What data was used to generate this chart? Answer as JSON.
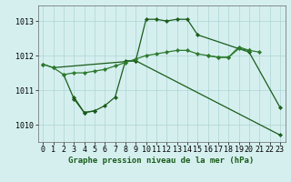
{
  "xlabel": "Graphe pression niveau de la mer (hPa)",
  "hours": [
    0,
    1,
    2,
    3,
    4,
    5,
    6,
    7,
    8,
    9,
    10,
    11,
    12,
    13,
    14,
    15,
    16,
    17,
    18,
    19,
    20,
    21,
    22,
    23
  ],
  "line1": [
    1011.75,
    1011.65,
    null,
    null,
    null,
    null,
    null,
    null,
    null,
    1011.85,
    1013.05,
    1013.05,
    1013.0,
    1013.05,
    1013.05,
    1012.6,
    null,
    null,
    null,
    null,
    1012.1,
    null,
    null,
    1010.5
  ],
  "line2": [
    null,
    null,
    1011.45,
    1010.75,
    1010.35,
    1010.4,
    1010.55,
    1010.8,
    1011.85,
    1011.85,
    null,
    null,
    null,
    null,
    null,
    null,
    null,
    null,
    null,
    null,
    null,
    null,
    null,
    1009.7
  ],
  "line3": [
    null,
    null,
    null,
    1010.8,
    1010.35,
    1010.4,
    null,
    null,
    null,
    null,
    null,
    null,
    null,
    null,
    null,
    null,
    null,
    null,
    null,
    null,
    null,
    null,
    null,
    null
  ],
  "line4": [
    1011.75,
    1011.65,
    1011.45,
    1011.5,
    1011.5,
    1011.55,
    1011.6,
    1011.7,
    1011.8,
    1011.9,
    1012.0,
    1012.05,
    1012.1,
    1012.15,
    1012.15,
    1012.05,
    1012.0,
    1011.95,
    1011.95,
    1012.2,
    1012.15,
    1012.1,
    null,
    null
  ],
  "line5": [
    null,
    null,
    null,
    null,
    null,
    null,
    null,
    null,
    null,
    null,
    null,
    null,
    null,
    null,
    null,
    null,
    1012.0,
    1011.95,
    1011.95,
    1012.25,
    1012.15,
    null,
    null,
    null
  ],
  "ylim": [
    1009.5,
    1013.45
  ],
  "yticks": [
    1010,
    1011,
    1012,
    1013
  ],
  "bg_color": "#d5efef",
  "grid_color": "#aed4d4",
  "line_color_dark": "#1a5c1a",
  "line_color_mid": "#2d7a2d",
  "marker": "D",
  "marker_size": 2.2,
  "label_fontsize": 6.5,
  "tick_fontsize": 6.0
}
